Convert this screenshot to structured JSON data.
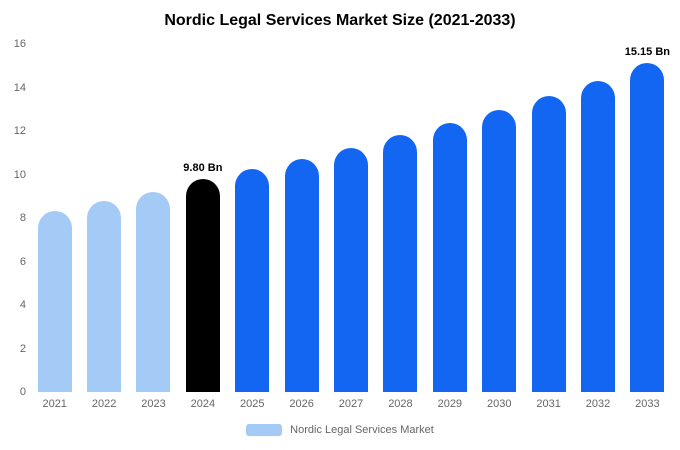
{
  "chart_data": {
    "type": "bar",
    "title": "Nordic Legal Services Market Size (2021-2033)",
    "categories": [
      "2021",
      "2022",
      "2023",
      "2024",
      "2025",
      "2026",
      "2027",
      "2028",
      "2029",
      "2030",
      "2031",
      "2032",
      "2033"
    ],
    "values": [
      8.3,
      8.8,
      9.2,
      9.8,
      10.25,
      10.7,
      11.2,
      11.8,
      12.35,
      12.95,
      13.6,
      14.3,
      15.15
    ],
    "bar_colors": [
      "#a4cbf5",
      "#a4cbf5",
      "#a4cbf5",
      "#000000",
      "#1266f1",
      "#1266f1",
      "#1266f1",
      "#1266f1",
      "#1266f1",
      "#1266f1",
      "#1266f1",
      "#1266f1",
      "#1266f1"
    ],
    "annotations": [
      {
        "index": 3,
        "text": "9.80 Bn"
      },
      {
        "index": 12,
        "text": "15.15 Bn"
      }
    ],
    "xlabel": "",
    "ylabel": "",
    "ylim": [
      0,
      16
    ],
    "yticks": [
      0,
      2,
      4,
      6,
      8,
      10,
      12,
      14,
      16
    ],
    "grid": false,
    "legend_position": "bottom",
    "legend": {
      "label": "Nordic Legal Services Market",
      "swatch_color": "#a4cbf5"
    },
    "colors": {
      "historical_bar": "#a4cbf5",
      "highlight_bar": "#000000",
      "forecast_bar": "#1266f1",
      "axis_text": "#666666",
      "title_text": "#000000"
    }
  }
}
